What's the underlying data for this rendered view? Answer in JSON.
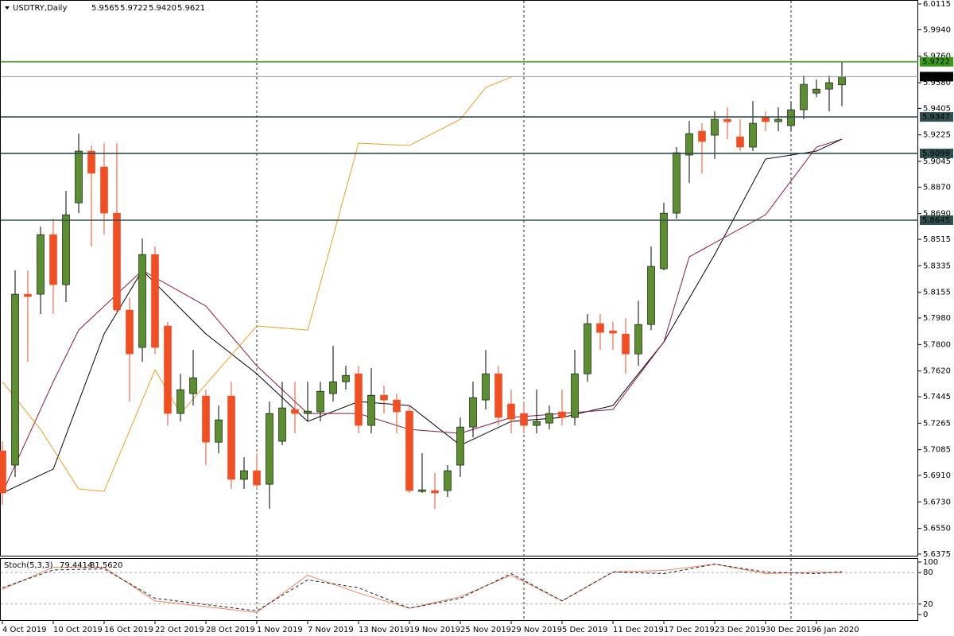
{
  "chart_data": {
    "type": "candlestick",
    "symbol": "USDTRY,Daily",
    "categories": [
      "4 Oct 2019",
      null,
      null,
      null,
      "10 Oct 2019",
      null,
      null,
      null,
      "16 Oct 2019",
      null,
      null,
      null,
      "22 Oct 2019",
      null,
      null,
      null,
      "28 Oct 2019",
      null,
      null,
      null,
      "1 Nov 2019",
      null,
      null,
      null,
      "7 Nov 2019",
      null,
      null,
      null,
      "13 Nov 2019",
      null,
      null,
      null,
      "19 Nov 2019",
      null,
      null,
      null,
      "25 Nov 2019",
      null,
      null,
      null,
      "29 Nov 2019",
      null,
      null,
      null,
      "5 Dec 2019",
      null,
      null,
      null,
      "11 Dec 2019",
      null,
      null,
      null,
      "17 Dec 2019",
      null,
      null,
      null,
      "23 Dec 2019",
      null,
      null,
      null,
      "30 Dec 2019",
      null,
      null,
      null,
      "6 Jan 2020",
      null,
      null
    ],
    "open": [
      5.7077,
      5.698,
      5.8142,
      5.8142,
      5.8547,
      5.8207,
      5.8763,
      5.9115,
      5.9007,
      5.8693,
      5.8034,
      5.778,
      5.8412,
      5.7926,
      5.7331,
      5.7466,
      5.745,
      5.7136,
      5.745,
      5.6883,
      5.6942,
      5.685,
      5.7142,
      5.7358,
      5.7331,
      5.7342,
      5.7466,
      5.7547,
      5.7601,
      5.725,
      5.7455,
      5.7423,
      5.7347,
      5.6801,
      5.6807,
      5.6807,
      5.698,
      5.7239,
      5.7423,
      5.7601,
      5.7396,
      5.7331,
      5.725,
      5.7266,
      5.7342,
      5.7304,
      5.7601,
      5.7942,
      5.7893,
      5.7871,
      5.7736,
      5.7936,
      5.8315,
      5.8693,
      5.9088,
      5.925,
      5.9223,
      5.9331,
      5.9212,
      5.9142,
      5.9342,
      5.9315,
      5.9288,
      5.9396,
      5.9509,
      5.9536,
      5.9565
    ],
    "high": [
      5.7142,
      5.8304,
      5.8304,
      5.8601,
      5.8655,
      5.8844,
      5.9234,
      5.9153,
      5.9169,
      5.9169,
      5.8115,
      5.852,
      5.8466,
      5.7953,
      5.7601,
      5.7763,
      5.7493,
      5.7385,
      5.7547,
      5.7034,
      5.7061,
      5.7412,
      5.7547,
      5.7547,
      5.7547,
      5.7547,
      5.779,
      5.7655,
      5.7655,
      5.7639,
      5.752,
      5.7466,
      5.7385,
      5.7061,
      5.6926,
      5.698,
      5.7304,
      5.7547,
      5.7763,
      5.7655,
      5.7493,
      5.7412,
      5.7493,
      5.7385,
      5.7493,
      5.7763,
      5.8007,
      5.8007,
      5.7953,
      5.798,
      5.8098,
      5.8466,
      5.8763,
      5.9142,
      5.932,
      5.9304,
      5.9385,
      5.9412,
      5.9331,
      5.9455,
      5.9385,
      5.9412,
      5.945,
      5.9628,
      5.9601,
      5.9628,
      5.9722
    ],
    "low": [
      5.671,
      5.6899,
      5.7682,
      5.8007,
      5.8007,
      5.8088,
      5.8693,
      5.8466,
      5.8547,
      5.8007,
      5.7412,
      5.7682,
      5.7736,
      5.725,
      5.7277,
      5.7385,
      5.698,
      5.7061,
      5.6818,
      5.6818,
      5.6818,
      5.6683,
      5.7115,
      5.7196,
      5.7277,
      5.7277,
      5.7412,
      5.7493,
      5.7196,
      5.7196,
      5.7331,
      5.7196,
      5.6791,
      5.6791,
      5.6683,
      5.6764,
      5.6899,
      5.7169,
      5.7358,
      5.725,
      5.7196,
      5.7196,
      5.7196,
      5.7223,
      5.725,
      5.725,
      5.7547,
      5.7763,
      5.7763,
      5.7601,
      5.7655,
      5.7898,
      5.8304,
      5.8655,
      5.8898,
      5.8963,
      5.9061,
      5.9196,
      5.9115,
      5.9115,
      5.925,
      5.925,
      5.925,
      5.9331,
      5.9482,
      5.9385,
      5.942
    ],
    "low_labels": [
      null,
      null,
      null,
      null,
      null,
      null,
      null,
      null,
      null,
      null,
      null,
      null,
      null,
      null,
      null,
      null,
      null,
      null,
      null,
      null,
      null,
      null,
      null,
      null,
      null,
      null,
      null,
      null,
      null,
      null,
      null,
      null,
      null,
      null,
      null,
      null,
      null,
      null,
      null,
      null,
      null,
      null,
      null,
      null,
      null,
      null,
      null,
      null,
      null,
      null,
      null,
      null,
      null,
      null,
      null,
      null,
      null,
      null,
      null,
      null,
      null,
      null,
      null,
      null,
      null,
      null,
      "5.9420"
    ],
    "close": [
      5.6791,
      5.8142,
      5.8126,
      5.8547,
      5.8207,
      5.8682,
      5.9115,
      5.8964,
      5.8693,
      5.8034,
      5.7736,
      5.8412,
      5.778,
      5.7331,
      5.7493,
      5.7574,
      5.7136,
      5.7288,
      5.6883,
      5.6942,
      5.6845,
      5.7331,
      5.7369,
      5.7331,
      5.7347,
      5.7482,
      5.7547,
      5.759,
      5.725,
      5.7455,
      5.7423,
      5.7342,
      5.6807,
      5.6812,
      5.6791,
      5.6942,
      5.7239,
      5.7439,
      5.7601,
      5.7304,
      5.7293,
      5.725,
      5.7277,
      5.7331,
      5.7304,
      5.7601,
      5.7942,
      5.7882,
      5.7877,
      5.7736,
      5.7936,
      5.8331,
      5.8693,
      5.9104,
      5.9234,
      5.918,
      5.9331,
      5.9315,
      5.9142,
      5.9304,
      5.9315,
      5.9331,
      5.9396,
      5.9569,
      5.9536,
      5.958,
      5.9621
    ],
    "up_color": "#5b8e2e",
    "down_color": "#f04e23",
    "ylim": [
      5.6375,
      6.0115
    ],
    "yticks": [
      6.0115,
      {
        "value": 5.994,
        "label": "5.9940"
      },
      {
        "value": 5.976,
        "label": "5.9760"
      },
      {
        "value": 5.958,
        "label": "5.9580"
      },
      5.9405,
      5.9225,
      5.9045,
      {
        "value": 5.887,
        "label": "5.8870"
      },
      {
        "value": 5.869,
        "label": "5.8690"
      },
      5.8515,
      5.8335,
      5.8155,
      {
        "value": 5.798,
        "label": "5.7980"
      },
      {
        "value": 5.78,
        "label": "5.7800"
      },
      {
        "value": 5.762,
        "label": "5.7620"
      },
      5.7445,
      5.7265,
      5.7085,
      {
        "value": 5.691,
        "label": "5.6910"
      },
      {
        "value": 5.673,
        "label": "5.6730"
      },
      {
        "value": 5.655,
        "label": "5.6550"
      },
      5.6375
    ],
    "levels": [
      {
        "value": 5.9722,
        "color": "#3a9a1a"
      },
      {
        "value": 5.9621,
        "color": "#8a9aa0"
      },
      {
        "value": 5.9347,
        "color": "#2f4f4f"
      },
      {
        "value": 5.9099,
        "color": "#2f4f4f"
      },
      {
        "value": 5.8645,
        "color": "#2f4f4f"
      }
    ],
    "overlays": [
      {
        "color": "#000000",
        "x": [
          0,
          4,
          8,
          11,
          16,
          20,
          24,
          28,
          32,
          36,
          40,
          44,
          48,
          52,
          56,
          60,
          64,
          66
        ],
        "values": [
          5.6791,
          5.6953,
          5.7872,
          5.8304,
          5.7872,
          5.7601,
          5.7277,
          5.7412,
          5.7385,
          5.7115,
          5.7277,
          5.7304,
          5.7385,
          5.7817,
          5.8412,
          5.9061,
          5.9115,
          5.9196
        ]
      },
      {
        "color": "#8b1a3a",
        "x": [
          0,
          4,
          6,
          11,
          16,
          20,
          24,
          28,
          32,
          36,
          40,
          44,
          48,
          52,
          54,
          60,
          64,
          66
        ],
        "values": [
          5.6791,
          5.7547,
          5.7898,
          5.8304,
          5.8061,
          5.7655,
          5.7331,
          5.7331,
          5.7223,
          5.7196,
          5.7304,
          5.7331,
          5.7358,
          5.7817,
          5.8396,
          5.8682,
          5.9142,
          5.9196
        ]
      },
      {
        "color": "#f0a020",
        "x": [
          0,
          3,
          6,
          8,
          12,
          14,
          20,
          24,
          28,
          32,
          36,
          38,
          40
        ],
        "values": [
          5.7547,
          5.7223,
          5.6818,
          5.6802,
          5.7628,
          5.7331,
          5.7926,
          5.7898,
          5.9169,
          5.9153,
          5.9331,
          5.9547,
          5.9618
        ]
      }
    ],
    "stoch": {
      "label": "Stoch(5,3,3)",
      "ylim": [
        0,
        100
      ],
      "yticks": [
        100,
        80,
        20,
        0
      ],
      "series": [
        {
          "color": "#f08060",
          "x": [
            0,
            4,
            8,
            12,
            16,
            20,
            24,
            28,
            32,
            36,
            40,
            44,
            48,
            52,
            56,
            60,
            64,
            66
          ],
          "values": [
            48,
            90,
            90,
            26,
            15,
            4,
            75,
            41,
            12,
            34,
            75,
            26,
            81,
            84,
            96,
            78,
            81,
            79.4414
          ]
        },
        {
          "color": "#202020",
          "dashed": true,
          "x": [
            0,
            4,
            8,
            12,
            16,
            20,
            24,
            28,
            32,
            36,
            40,
            44,
            48,
            52,
            56,
            60,
            64,
            66
          ],
          "values": [
            51,
            85,
            87,
            31,
            19,
            7,
            66,
            51,
            12,
            31,
            78,
            26,
            81,
            78,
            96,
            81,
            78,
            81.562
          ],
          "value_labels": [
            null,
            null,
            null,
            null,
            null,
            null,
            null,
            null,
            null,
            null,
            null,
            null,
            null,
            null,
            null,
            null,
            null,
            "81.5620"
          ]
        }
      ]
    }
  }
}
